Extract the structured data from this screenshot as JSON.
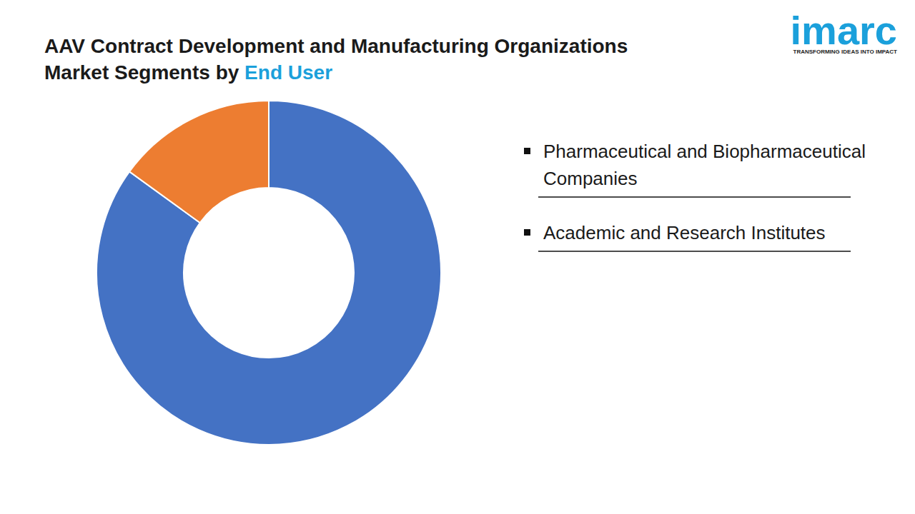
{
  "chart_data": {
    "type": "donut",
    "title": "AAV Contract Development and Manufacturing Organizations Market Segments by End User",
    "categories": [
      "Pharmaceutical and Biopharmaceutical Companies",
      "Academic and Research Institutes"
    ],
    "values": [
      85,
      15
    ],
    "colors": [
      "#4472c4",
      "#ed7d31"
    ],
    "legend": "right"
  },
  "logo": {
    "name": "imarc",
    "tagline": "TRANSFORMING IDEAS INTO IMPACT"
  }
}
